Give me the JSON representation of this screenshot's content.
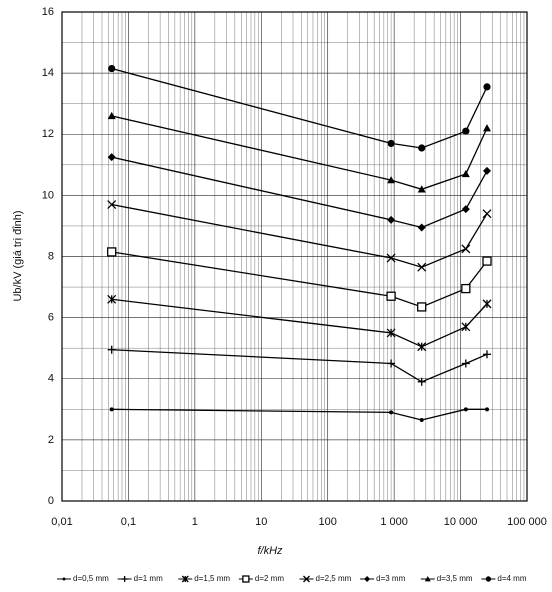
{
  "chart_data": {
    "type": "line",
    "x_label": "f/kHz",
    "y_label": "Ub/kV (giá trị đỉnh)",
    "x_log": true,
    "grid": true,
    "minor_grid": true,
    "legend_position": "bottom",
    "xlim": [
      0.01,
      100000
    ],
    "xticks": [
      {
        "value": 0.01,
        "label": "0,01"
      },
      {
        "value": 0.1,
        "label": "0,1"
      },
      1,
      10,
      100,
      {
        "value": 1000,
        "label": "1 000"
      },
      {
        "value": 10000,
        "label": "10 000"
      },
      {
        "value": 100000,
        "label": "100 000"
      }
    ],
    "ylim": [
      0,
      16
    ],
    "yticks": [
      0,
      2,
      4,
      6,
      8,
      10,
      12,
      14,
      16
    ],
    "x": [
      0.056,
      900,
      2600,
      12000,
      25000
    ],
    "series": [
      {
        "name": "d=0,5 mm",
        "color": "#000000",
        "marker": "dot",
        "values": [
          3.0,
          2.9,
          2.65,
          3.0,
          3.0
        ]
      },
      {
        "name": "d=1 mm",
        "color": "#000000",
        "marker": "plus",
        "values": [
          4.95,
          4.5,
          3.9,
          4.5,
          4.8
        ]
      },
      {
        "name": "d=1,5 mm",
        "color": "#000000",
        "marker": "asterisk",
        "values": [
          6.6,
          5.5,
          5.05,
          5.7,
          6.45
        ]
      },
      {
        "name": "d=2 mm",
        "color": "#000000",
        "marker": "square",
        "values": [
          8.15,
          6.7,
          6.35,
          6.95,
          7.85
        ]
      },
      {
        "name": "d=2,5 mm",
        "color": "#000000",
        "marker": "x",
        "values": [
          9.7,
          7.95,
          7.65,
          8.25,
          9.4
        ]
      },
      {
        "name": "d=3 mm",
        "color": "#000000",
        "marker": "diamond",
        "values": [
          11.25,
          9.2,
          8.95,
          9.55,
          10.8
        ]
      },
      {
        "name": "d=3,5 mm",
        "color": "#000000",
        "marker": "triangle",
        "values": [
          12.6,
          10.5,
          10.2,
          10.7,
          12.2
        ]
      },
      {
        "name": "d=4 mm",
        "color": "#000000",
        "marker": "circle",
        "values": [
          14.15,
          11.7,
          11.55,
          12.1,
          13.55
        ]
      }
    ]
  }
}
